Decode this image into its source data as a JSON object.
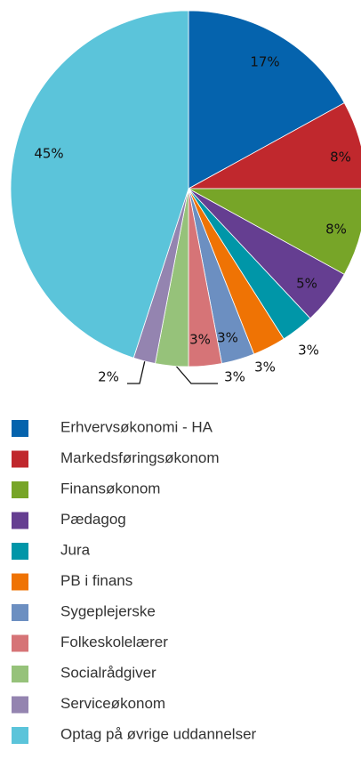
{
  "chart_data": {
    "type": "pie",
    "categories": [
      "Erhvervsøkonomi - HA",
      "Markedsføringsøkonom",
      "Finansøkonom",
      "Pædagog",
      "Jura",
      "PB i finans",
      "Sygeplejerske",
      "Folkeskolelærer",
      "Socialrådgiver",
      "Serviceøkonom",
      "Optag på øvrige uddannelser"
    ],
    "values": [
      17,
      8,
      8,
      5,
      3,
      3,
      3,
      3,
      3,
      2,
      45
    ],
    "value_labels": [
      "17%",
      "8%",
      "8%",
      "5%",
      "3%",
      "3%",
      "3%",
      "3%",
      "3%",
      "2%",
      "45%"
    ],
    "colors": [
      "#0563ad",
      "#c0282d",
      "#77a528",
      "#653e91",
      "#0096a8",
      "#ef7304",
      "#6c8fc1",
      "#d67477",
      "#96c27a",
      "#9484b0",
      "#5bc4da"
    ]
  }
}
